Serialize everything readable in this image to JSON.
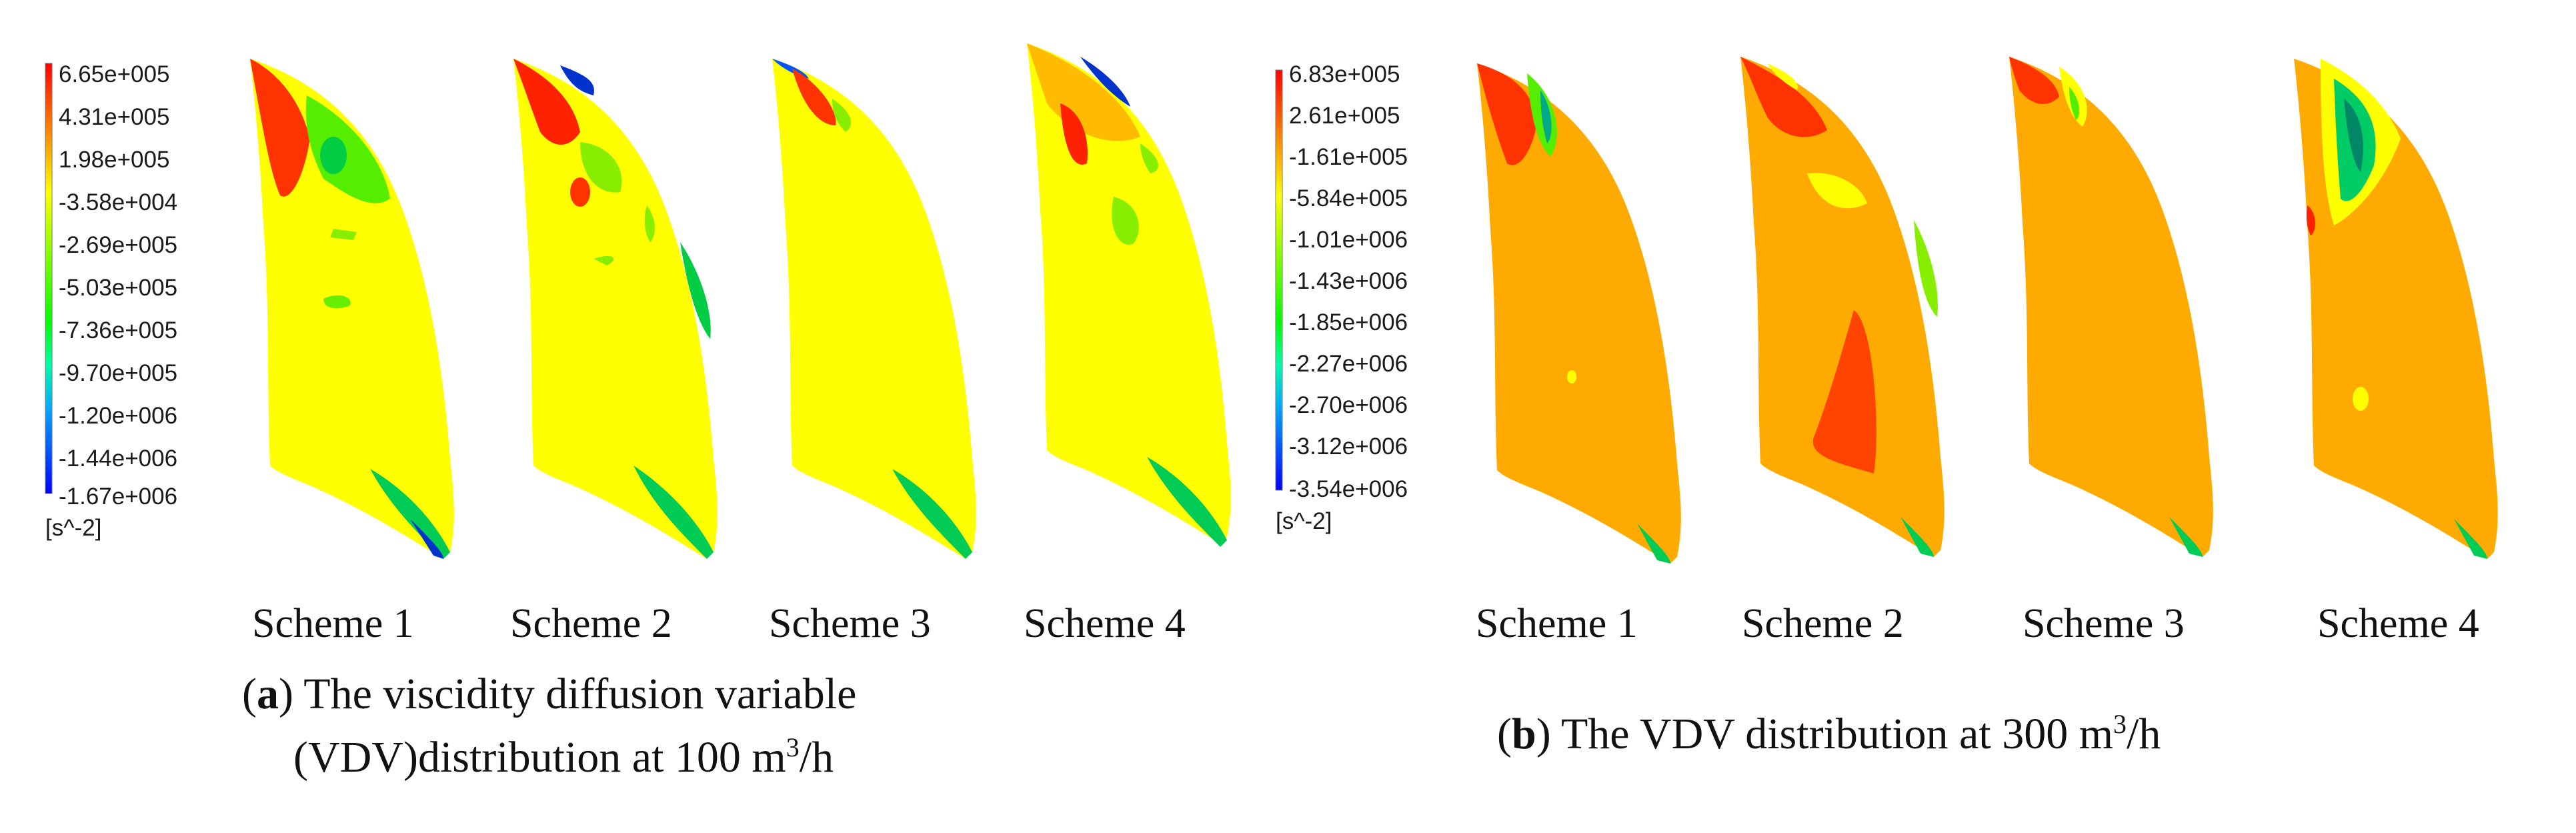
{
  "figure": {
    "panel_a": {
      "colorbar": {
        "labels": [
          "6.65e+005",
          "4.31e+005",
          "1.98e+005",
          "-3.58e+004",
          "-2.69e+005",
          "-5.03e+005",
          "-7.36e+005",
          "-9.70e+005",
          "-1.20e+006",
          "-1.44e+006",
          "-1.67e+006"
        ],
        "unit": "[s^-2]"
      },
      "schemes": [
        "Scheme 1",
        "Scheme 2",
        "Scheme 3",
        "Scheme 4"
      ],
      "caption": {
        "letter": "a",
        "line1": " The viscidity diffusion variable",
        "line2": "(VDV)distribution at 100 m",
        "sup": "3",
        "line2_end": "/h"
      },
      "background_color": "#ffff00"
    },
    "panel_b": {
      "colorbar": {
        "labels": [
          "6.83e+005",
          "2.61e+005",
          "-1.61e+005",
          "-5.84e+005",
          "-1.01e+006",
          "-1.43e+006",
          "-1.85e+006",
          "-2.27e+006",
          "-2.70e+006",
          "-3.12e+006",
          "-3.54e+006"
        ],
        "unit": "[s^-2]"
      },
      "schemes": [
        "Scheme 1",
        "Scheme 2",
        "Scheme 3",
        "Scheme 4"
      ],
      "caption": {
        "letter": "b",
        "text": " The VDV distribution at 300 m",
        "sup": "3",
        "text_end": "/h"
      },
      "background_color": "#ffaa00"
    },
    "colormap": [
      "#ff0000",
      "#ff5500",
      "#ffaa00",
      "#ffff00",
      "#aaff00",
      "#55ff00",
      "#00ff00",
      "#00ff55",
      "#00ffaa",
      "#00aaff",
      "#0055ff",
      "#0000ff"
    ]
  }
}
